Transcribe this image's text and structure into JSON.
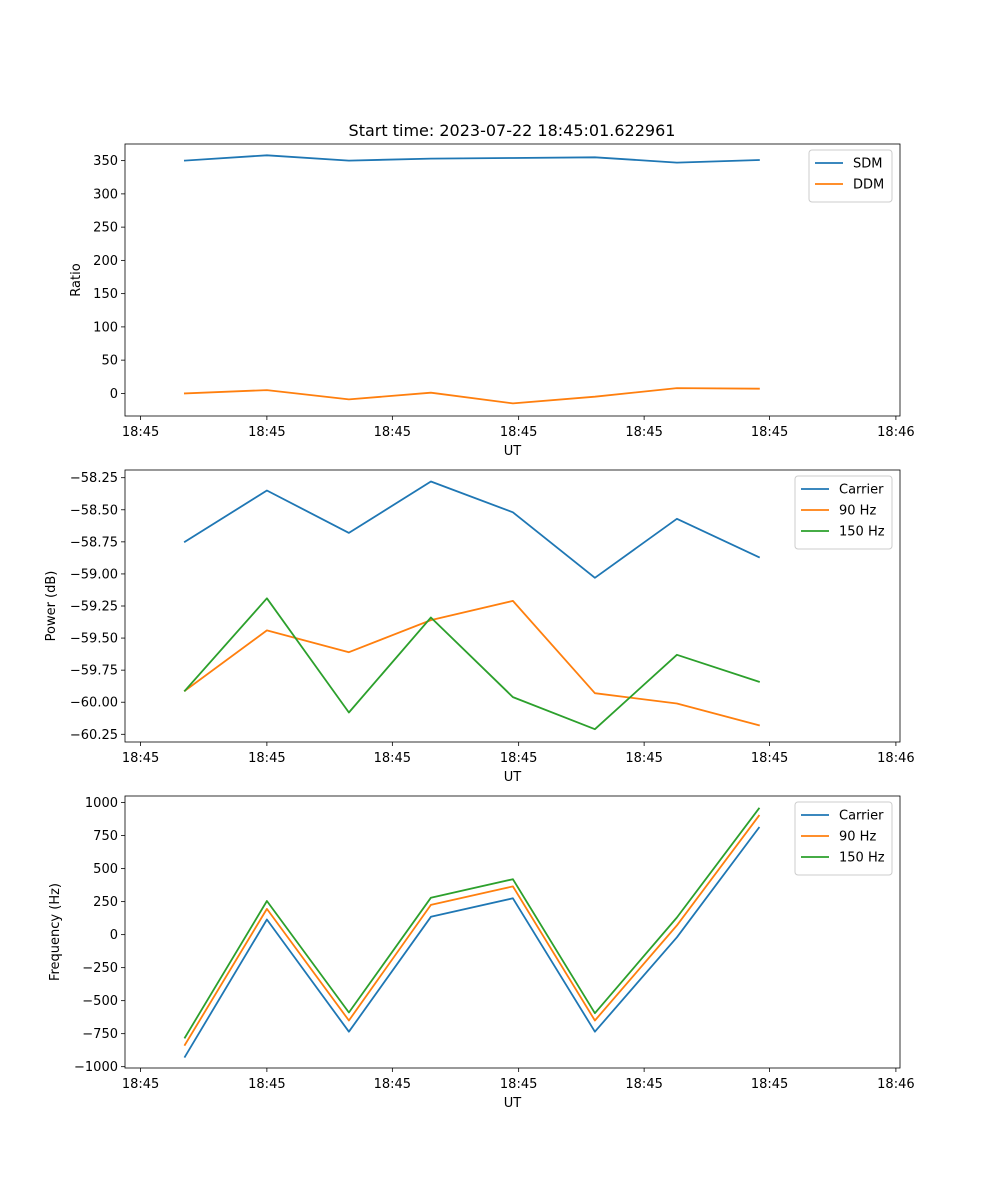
{
  "chart_data": {
    "type": "line",
    "title": "Start time: 2023-07-22 18:45:01.622961",
    "x_tick_labels": [
      "18:45",
      "18:45",
      "18:45",
      "18:45",
      "18:45",
      "18:45",
      "18:46"
    ],
    "x": [
      1,
      2,
      3,
      4,
      5,
      6,
      7,
      8
    ],
    "xlim": [
      0.27,
      9.72
    ],
    "x_ticks": [
      0.46,
      2.0,
      3.53,
      5.07,
      6.6,
      8.13,
      9.67
    ],
    "colors": {
      "blue": "#1f77b4",
      "orange": "#ff7f0e",
      "green": "#2ca02c"
    },
    "panels": [
      {
        "ylabel": "Ratio",
        "xlabel": "UT",
        "ylim": [
          -34,
          375
        ],
        "yticks": [
          0,
          50,
          100,
          150,
          200,
          250,
          300,
          350
        ],
        "legend_position": "top-right",
        "series": [
          {
            "name": "SDM",
            "color": "#1f77b4",
            "values": [
              350,
              358,
              350,
              353,
              354,
              355,
              347,
              351
            ]
          },
          {
            "name": "DDM",
            "color": "#ff7f0e",
            "values": [
              0,
              5,
              -9,
              1,
              -15,
              -5,
              8,
              7
            ]
          }
        ]
      },
      {
        "ylabel": "Power (dB)",
        "xlabel": "UT",
        "ylim": [
          -60.31,
          -58.19
        ],
        "yticks": [
          -58.25,
          -58.5,
          -58.75,
          -59.0,
          -59.25,
          -59.5,
          -59.75,
          -60.0,
          -60.25
        ],
        "ytick_labels": [
          "−58.25",
          "−58.50",
          "−58.75",
          "−59.00",
          "−59.25",
          "−59.50",
          "−59.75",
          "−60.00",
          "−60.25"
        ],
        "legend_position": "top-right",
        "series": [
          {
            "name": "Carrier",
            "color": "#1f77b4",
            "values": [
              -58.75,
              -58.35,
              -58.68,
              -58.28,
              -58.52,
              -59.03,
              -58.57,
              -58.87
            ]
          },
          {
            "name": "90 Hz",
            "color": "#ff7f0e",
            "values": [
              -59.91,
              -59.44,
              -59.61,
              -59.36,
              -59.21,
              -59.93,
              -60.01,
              -60.18
            ]
          },
          {
            "name": "150 Hz",
            "color": "#2ca02c",
            "values": [
              -59.91,
              -59.19,
              -60.08,
              -59.34,
              -59.96,
              -60.21,
              -59.63,
              -59.84
            ]
          }
        ]
      },
      {
        "ylabel": "Frequency (Hz)",
        "xlabel": "UT",
        "ylim": [
          -1010,
          1050
        ],
        "yticks": [
          1000,
          750,
          500,
          250,
          0,
          -250,
          -500,
          -750,
          -1000
        ],
        "ytick_labels": [
          "1000",
          "750",
          "500",
          "250",
          "0",
          "−250",
          "−500",
          "−750",
          "−1000"
        ],
        "legend_position": "top-right",
        "series": [
          {
            "name": "Carrier",
            "color": "#1f77b4",
            "values": [
              -925,
              115,
              -735,
              135,
              275,
              -735,
              -20,
              810
            ]
          },
          {
            "name": "90 Hz",
            "color": "#ff7f0e",
            "values": [
              -835,
              195,
              -650,
              225,
              365,
              -650,
              70,
              900
            ]
          },
          {
            "name": "150 Hz",
            "color": "#2ca02c",
            "values": [
              -780,
              255,
              -590,
              280,
              420,
              -595,
              130,
              955
            ]
          }
        ]
      }
    ]
  }
}
